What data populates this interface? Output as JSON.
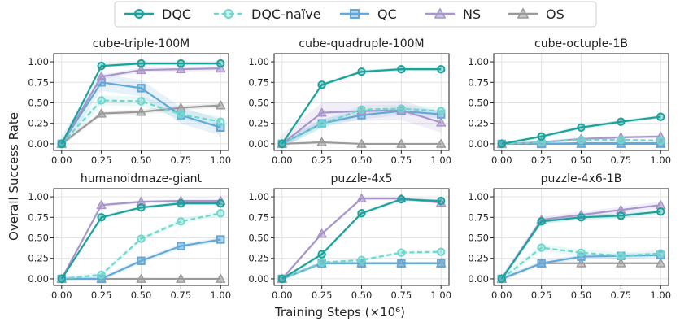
{
  "legend": {
    "placement": "top-center",
    "entries": [
      {
        "name": "DQC",
        "color": "#1aa39a",
        "marker": "circle",
        "dash": "solid"
      },
      {
        "name": "DQC-naïve",
        "color": "#6ed8cc",
        "marker": "circle",
        "dash": "dashed"
      },
      {
        "name": "QC",
        "color": "#62a8d8",
        "marker": "square",
        "dash": "solid"
      },
      {
        "name": "NS",
        "color": "#a795cb",
        "marker": "triangle",
        "dash": "solid"
      },
      {
        "name": "OS",
        "color": "#9a9a9a",
        "marker": "triangle",
        "dash": "solid"
      }
    ]
  },
  "ylabel": "Overall Success Rate",
  "xlabel": "Training Steps (×10⁶)",
  "chart_data": [
    {
      "type": "line",
      "title": "cube-triple-100M",
      "x": [
        0,
        0.25,
        0.5,
        0.75,
        1.0
      ],
      "xlim": [
        -0.05,
        1.05
      ],
      "ylim": [
        -0.08,
        1.1
      ],
      "xticks": [
        "0.00",
        "0.25",
        "0.50",
        "0.75",
        "1.00"
      ],
      "yticks": [
        "0.00",
        "0.25",
        "0.50",
        "0.75",
        "1.00"
      ],
      "grid": true,
      "series": [
        {
          "name": "DQC",
          "values": [
            0.0,
            0.95,
            0.98,
            0.98,
            0.98
          ],
          "band": 0.02
        },
        {
          "name": "DQC-naïve",
          "values": [
            0.0,
            0.53,
            0.52,
            0.36,
            0.27
          ],
          "band": 0.06
        },
        {
          "name": "QC",
          "values": [
            0.0,
            0.75,
            0.68,
            0.35,
            0.2
          ],
          "band": 0.1
        },
        {
          "name": "NS",
          "values": [
            0.0,
            0.82,
            0.9,
            0.91,
            0.92
          ],
          "band": 0.03
        },
        {
          "name": "OS",
          "values": [
            0.0,
            0.37,
            0.39,
            0.44,
            0.47
          ],
          "band": 0.03
        }
      ]
    },
    {
      "type": "line",
      "title": "cube-quadruple-100M",
      "x": [
        0,
        0.25,
        0.5,
        0.75,
        1.0
      ],
      "xlim": [
        -0.05,
        1.05
      ],
      "ylim": [
        -0.08,
        1.1
      ],
      "xticks": [
        "0.00",
        "0.25",
        "0.50",
        "0.75",
        "1.00"
      ],
      "yticks": [
        "0.00",
        "0.25",
        "0.50",
        "0.75",
        "1.00"
      ],
      "grid": true,
      "series": [
        {
          "name": "DQC",
          "values": [
            0.0,
            0.72,
            0.88,
            0.91,
            0.91
          ],
          "band": 0.02
        },
        {
          "name": "DQC-naïve",
          "values": [
            0.0,
            0.24,
            0.42,
            0.43,
            0.4
          ],
          "band": 0.05
        },
        {
          "name": "QC",
          "values": [
            0.0,
            0.25,
            0.35,
            0.4,
            0.36
          ],
          "band": 0.05
        },
        {
          "name": "NS",
          "values": [
            0.0,
            0.38,
            0.4,
            0.41,
            0.26
          ],
          "band": 0.12
        },
        {
          "name": "OS",
          "values": [
            0.0,
            0.02,
            0.0,
            0.0,
            0.0
          ],
          "band": 0.01
        }
      ]
    },
    {
      "type": "line",
      "title": "cube-octuple-1B",
      "x": [
        0,
        0.25,
        0.5,
        0.75,
        1.0
      ],
      "xlim": [
        -0.05,
        1.05
      ],
      "ylim": [
        -0.08,
        1.1
      ],
      "xticks": [
        "0.00",
        "0.25",
        "0.50",
        "0.75",
        "1.00"
      ],
      "yticks": [
        "0.00",
        "0.25",
        "0.50",
        "0.75",
        "1.00"
      ],
      "grid": true,
      "series": [
        {
          "name": "DQC",
          "values": [
            0.0,
            0.09,
            0.2,
            0.27,
            0.33
          ],
          "band": 0.02
        },
        {
          "name": "DQC-naïve",
          "values": [
            0.0,
            0.02,
            0.05,
            0.05,
            0.04
          ],
          "band": 0.01
        },
        {
          "name": "QC",
          "values": [
            0.0,
            0.0,
            0.01,
            0.01,
            0.01
          ],
          "band": 0.01
        },
        {
          "name": "NS",
          "values": [
            0.0,
            0.02,
            0.06,
            0.08,
            0.09
          ],
          "band": 0.02
        },
        {
          "name": "OS",
          "values": [
            0.0,
            0.0,
            0.0,
            0.0,
            0.0
          ],
          "band": 0.0
        }
      ]
    },
    {
      "type": "line",
      "title": "humanoidmaze-giant",
      "x": [
        0,
        0.25,
        0.5,
        0.75,
        1.0
      ],
      "xlim": [
        -0.05,
        1.05
      ],
      "ylim": [
        -0.08,
        1.1
      ],
      "xticks": [
        "0.00",
        "0.25",
        "0.50",
        "0.75",
        "1.00"
      ],
      "yticks": [
        "0.00",
        "0.25",
        "0.50",
        "0.75",
        "1.00"
      ],
      "grid": true,
      "series": [
        {
          "name": "DQC",
          "values": [
            0.0,
            0.75,
            0.87,
            0.92,
            0.92
          ],
          "band": 0.02
        },
        {
          "name": "DQC-naïve",
          "values": [
            0.0,
            0.05,
            0.49,
            0.7,
            0.8
          ],
          "band": 0.03
        },
        {
          "name": "QC",
          "values": [
            0.0,
            0.0,
            0.22,
            0.4,
            0.48
          ],
          "band": 0.03
        },
        {
          "name": "NS",
          "values": [
            0.0,
            0.9,
            0.94,
            0.95,
            0.95
          ],
          "band": 0.02
        },
        {
          "name": "OS",
          "values": [
            0.0,
            0.0,
            0.0,
            0.0,
            0.0
          ],
          "band": 0.0
        }
      ]
    },
    {
      "type": "line",
      "title": "puzzle-4x5",
      "x": [
        0,
        0.25,
        0.5,
        0.75,
        1.0
      ],
      "xlim": [
        -0.05,
        1.05
      ],
      "ylim": [
        -0.08,
        1.1
      ],
      "xticks": [
        "0.00",
        "0.25",
        "0.50",
        "0.75",
        "1.00"
      ],
      "yticks": [
        "0.00",
        "0.25",
        "0.50",
        "0.75",
        "1.00"
      ],
      "grid": true,
      "series": [
        {
          "name": "DQC",
          "values": [
            0.0,
            0.3,
            0.8,
            0.97,
            0.95
          ],
          "band": 0.02
        },
        {
          "name": "DQC-naïve",
          "values": [
            0.0,
            0.2,
            0.23,
            0.32,
            0.33
          ],
          "band": 0.02
        },
        {
          "name": "QC",
          "values": [
            0.0,
            0.19,
            0.19,
            0.19,
            0.19
          ],
          "band": 0.02
        },
        {
          "name": "NS",
          "values": [
            0.0,
            0.55,
            0.98,
            0.98,
            0.93
          ],
          "band": 0.02
        },
        {
          "name": "OS",
          "values": [
            0.0,
            0.19,
            0.19,
            0.19,
            0.19
          ],
          "band": 0.0
        }
      ]
    },
    {
      "type": "line",
      "title": "puzzle-4x6-1B",
      "x": [
        0,
        0.25,
        0.5,
        0.75,
        1.0
      ],
      "xlim": [
        -0.05,
        1.05
      ],
      "ylim": [
        -0.08,
        1.1
      ],
      "xticks": [
        "0.00",
        "0.25",
        "0.50",
        "0.75",
        "1.00"
      ],
      "yticks": [
        "0.00",
        "0.25",
        "0.50",
        "0.75",
        "1.00"
      ],
      "grid": true,
      "series": [
        {
          "name": "DQC",
          "values": [
            0.0,
            0.7,
            0.75,
            0.77,
            0.82
          ],
          "band": 0.03
        },
        {
          "name": "DQC-naïve",
          "values": [
            0.0,
            0.38,
            0.32,
            0.28,
            0.31
          ],
          "band": 0.04
        },
        {
          "name": "QC",
          "values": [
            0.0,
            0.19,
            0.27,
            0.28,
            0.29
          ],
          "band": 0.03
        },
        {
          "name": "NS",
          "values": [
            0.0,
            0.72,
            0.78,
            0.84,
            0.9
          ],
          "band": 0.04
        },
        {
          "name": "OS",
          "values": [
            0.0,
            0.19,
            0.19,
            0.19,
            0.19
          ],
          "band": 0.0
        }
      ]
    }
  ]
}
